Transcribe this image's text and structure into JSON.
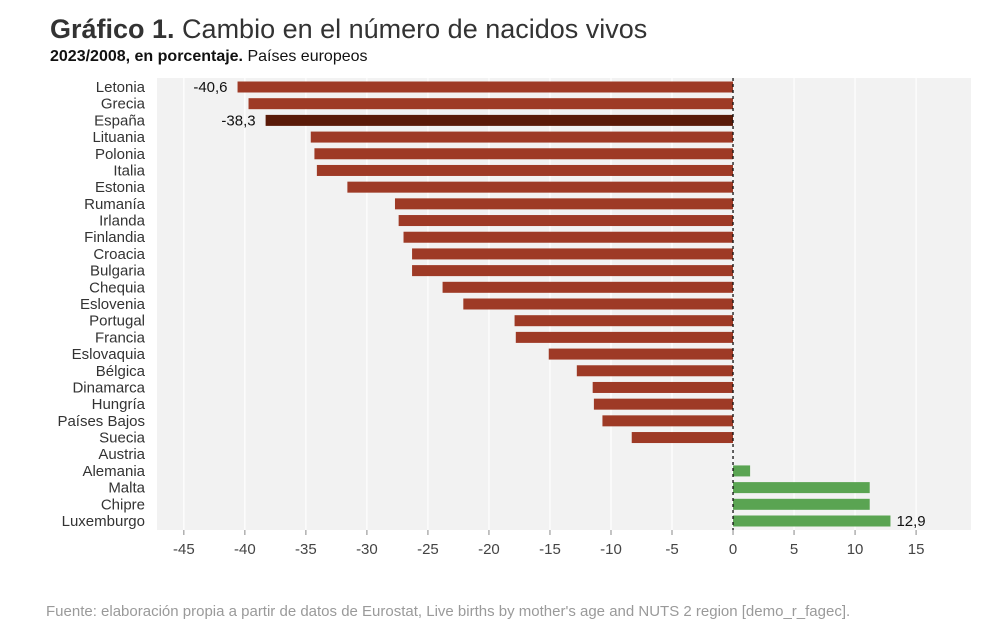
{
  "header": {
    "title_bold": "Gráfico 1.",
    "title_rest": " Cambio en el número de nacidos vivos",
    "subtitle_bold": "2023/2008, en porcentaje.",
    "subtitle_rest": " Países europeos"
  },
  "footer": {
    "source": "Fuente: elaboración propia a partir de datos de Eurostat, Live births by mother's age and NUTS 2 region [demo_r_fagec]."
  },
  "colors": {
    "negative": "#9e3a26",
    "highlight": "#5a1a08",
    "positive": "#5aa452",
    "panel": "#f2f2f2",
    "grid": "#ffffff",
    "zero_line": "#111111"
  },
  "chart_data": {
    "type": "bar",
    "orientation": "horizontal",
    "categories": [
      "Letonia",
      "Grecia",
      "España",
      "Lituania",
      "Polonia",
      "Italia",
      "Estonia",
      "Rumanía",
      "Irlanda",
      "Finlandia",
      "Croacia",
      "Bulgaria",
      "Chequia",
      "Eslovenia",
      "Portugal",
      "Francia",
      "Eslovaquia",
      "Bélgica",
      "Dinamarca",
      "Hungría",
      "Países Bajos",
      "Suecia",
      "Austria",
      "Alemania",
      "Malta",
      "Chipre",
      "Luxemburgo"
    ],
    "values": [
      -40.6,
      -39.7,
      -38.3,
      -34.6,
      -34.3,
      -34.1,
      -31.6,
      -27.7,
      -27.4,
      -27.0,
      -26.3,
      -26.3,
      -23.8,
      -22.1,
      -17.9,
      -17.8,
      -15.1,
      -12.8,
      -11.5,
      -11.4,
      -10.7,
      -8.3,
      0.0,
      1.4,
      11.2,
      11.2,
      12.9
    ],
    "highlight": "España",
    "data_labels": [
      {
        "category": "Letonia",
        "text": "-40,6"
      },
      {
        "category": "España",
        "text": "-38,3"
      },
      {
        "category": "Luxemburgo",
        "text": "12,9"
      }
    ],
    "x_ticks": [
      -45,
      -40,
      -35,
      -30,
      -25,
      -20,
      -15,
      -10,
      -5,
      0,
      5,
      10,
      15
    ],
    "x_tick_labels": [
      "-45",
      "-40",
      "-35",
      "-30",
      "-25",
      "-20",
      "-15",
      "-10",
      "-5",
      "0",
      "5",
      "10",
      "15"
    ],
    "xlim": [
      -47.2,
      19.5
    ],
    "xlabel": "",
    "ylabel": "",
    "grid": true,
    "legend": false
  }
}
